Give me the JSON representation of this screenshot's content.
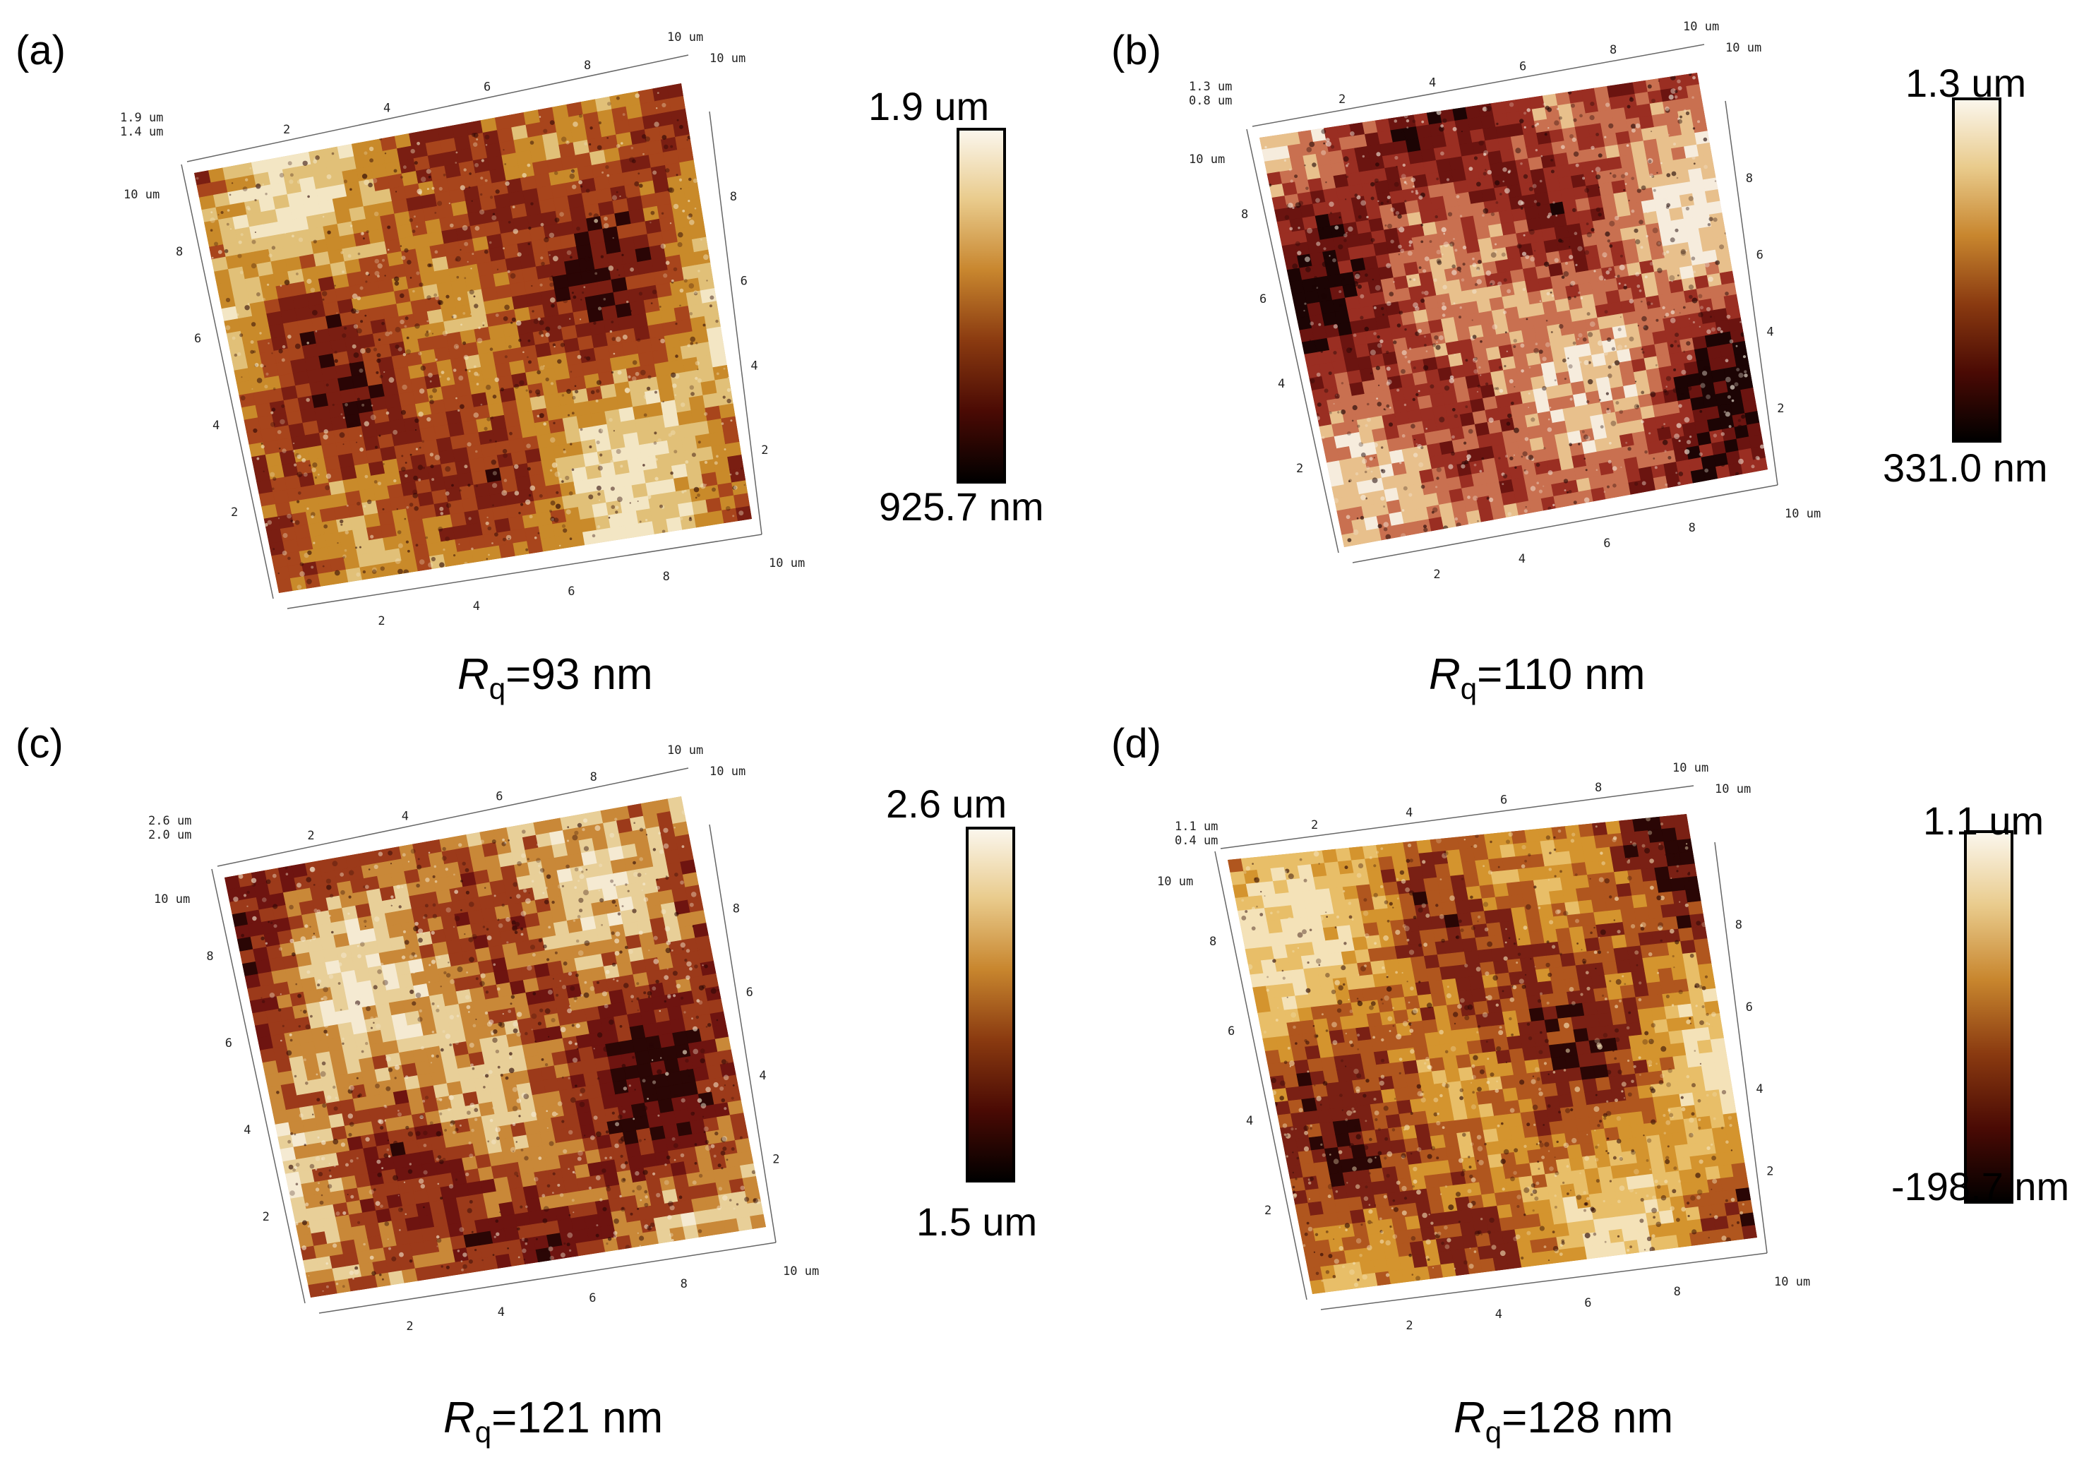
{
  "panels": [
    {
      "label": "(a)",
      "rq_prefix": "R",
      "rq_sub": "q",
      "rq_value": "=93 nm",
      "cbar_max": "1.9 um",
      "cbar_min": "925.7 nm",
      "z_labels": [
        "1.9 um",
        "1.4 um"
      ],
      "axis_unit": "10 um",
      "ticks": [
        "2",
        "4",
        "6",
        "8"
      ],
      "colors": [
        "#2a0505",
        "#7a1e12",
        "#a8451c",
        "#c98a2a",
        "#e1c078",
        "#f3e6c4"
      ],
      "palette_mix": [
        0.25,
        0.2,
        0.2,
        0.2,
        0.15
      ]
    },
    {
      "label": "(b)",
      "rq_prefix": "R",
      "rq_sub": "q",
      "rq_value": "=110 nm",
      "cbar_max": "1.3 um",
      "cbar_min": "331.0 nm",
      "z_labels": [
        "1.3 um",
        "0.8 um"
      ],
      "axis_unit": "10 um",
      "ticks": [
        "2",
        "4",
        "6",
        "8"
      ],
      "colors": [
        "#1c0404",
        "#6b1410",
        "#9a2e22",
        "#c97050",
        "#e8c08c",
        "#f6ecdd"
      ]
    },
    {
      "label": "(c)",
      "rq_prefix": "R",
      "rq_sub": "q",
      "rq_value": "=121 nm",
      "cbar_max": "2.6 um",
      "cbar_min": "1.5 um",
      "z_labels": [
        "2.6 um",
        "2.0 um"
      ],
      "axis_unit": "10 um",
      "ticks": [
        "2",
        "4",
        "6",
        "8"
      ],
      "colors": [
        "#2a0605",
        "#6e1410",
        "#9c3a1a",
        "#c98838",
        "#e8cf98",
        "#f5ead2"
      ]
    },
    {
      "label": "(d)",
      "rq_prefix": "R",
      "rq_sub": "q",
      "rq_value": "=128 nm",
      "cbar_max": "1.1 um",
      "cbar_min": "-198.7 nm",
      "z_labels": [
        "1.1 um",
        "0.4 um"
      ],
      "axis_unit": "10 um",
      "ticks": [
        "2",
        "4",
        "6",
        "8"
      ],
      "colors": [
        "#2a0605",
        "#7a2014",
        "#b0561e",
        "#d4942e",
        "#e8be68",
        "#f4e2b8"
      ]
    }
  ],
  "colorbar_gradient": [
    "#000000",
    "#4a0a04",
    "#8a3a10",
    "#c8862e",
    "#e9cb8c",
    "#fbf7ee"
  ]
}
